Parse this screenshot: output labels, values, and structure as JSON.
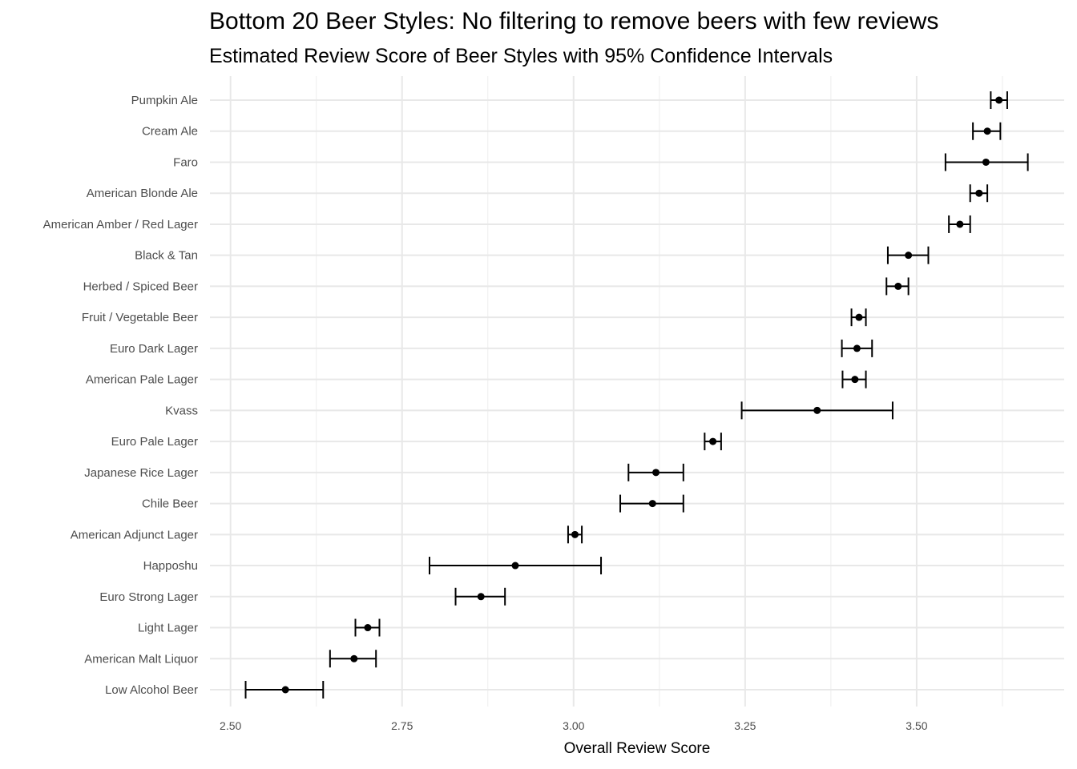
{
  "chart_data": {
    "type": "errorbar",
    "title": "Bottom 20 Beer Styles: No filtering to remove beers with few reviews",
    "subtitle": "Estimated Review Score of Beer Styles with 95% Confidence Intervals",
    "xlabel": "Overall Review Score",
    "ylabel": "",
    "xlim": [
      2.47,
      3.715
    ],
    "x_ticks": [
      "2.50",
      "2.75",
      "3.00",
      "3.25",
      "3.50"
    ],
    "grid": true,
    "point_color": "#000000",
    "categories": [
      "Pumpkin Ale",
      "Cream Ale",
      "Faro",
      "American Blonde Ale",
      "American Amber / Red Lager",
      "Black & Tan",
      "Herbed / Spiced Beer",
      "Fruit / Vegetable Beer",
      "Euro Dark Lager",
      "American Pale Lager",
      "Kvass",
      "Euro Pale Lager",
      "Japanese Rice Lager",
      "Chile Beer",
      "American Adjunct Lager",
      "Happoshu",
      "Euro Strong Lager",
      "Light Lager",
      "American Malt Liquor",
      "Low Alcohol Beer"
    ],
    "estimate": [
      3.62,
      3.603,
      3.601,
      3.591,
      3.563,
      3.488,
      3.473,
      3.416,
      3.413,
      3.41,
      3.355,
      3.203,
      3.12,
      3.115,
      3.002,
      2.915,
      2.865,
      2.7,
      2.68,
      2.58
    ],
    "lower": [
      3.608,
      3.582,
      3.542,
      3.578,
      3.547,
      3.458,
      3.456,
      3.405,
      3.391,
      3.392,
      3.245,
      3.191,
      3.08,
      3.068,
      2.992,
      2.79,
      2.828,
      2.682,
      2.645,
      2.522
    ],
    "upper": [
      3.632,
      3.622,
      3.662,
      3.603,
      3.578,
      3.517,
      3.488,
      3.426,
      3.435,
      3.426,
      3.465,
      3.215,
      3.16,
      3.16,
      3.012,
      3.04,
      2.9,
      2.717,
      2.712,
      2.635
    ]
  }
}
